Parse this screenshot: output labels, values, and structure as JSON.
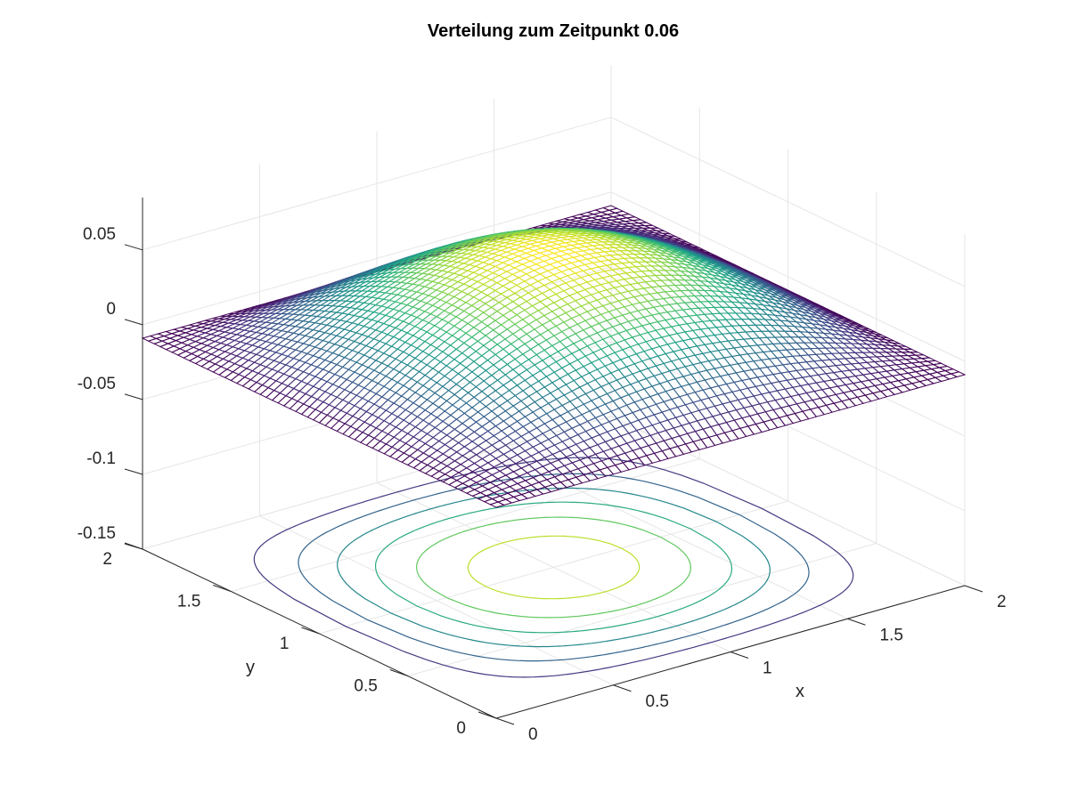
{
  "chart_data": {
    "type": "mesh",
    "title": "Verteilung zum Zeitpunkt 0.06",
    "xlabel": "x",
    "ylabel": "y",
    "zlabel": "",
    "xlim": [
      0,
      2
    ],
    "ylim": [
      0,
      2
    ],
    "zlim": [
      -0.15,
      0.085
    ],
    "x_ticks": [
      {
        "value": 0,
        "label": "0"
      },
      {
        "value": 0.5,
        "label": "0.5"
      },
      {
        "value": 1,
        "label": "1"
      },
      {
        "value": 1.5,
        "label": "1.5"
      },
      {
        "value": 2,
        "label": "2"
      }
    ],
    "y_ticks": [
      {
        "value": 0,
        "label": "0"
      },
      {
        "value": 0.5,
        "label": "0.5"
      },
      {
        "value": 1,
        "label": "1"
      },
      {
        "value": 1.5,
        "label": "1.5"
      },
      {
        "value": 2,
        "label": "2"
      }
    ],
    "z_ticks": [
      {
        "value": -0.15,
        "label": "-0.15"
      },
      {
        "value": -0.1,
        "label": "-0.1"
      },
      {
        "value": -0.05,
        "label": "-0.05"
      },
      {
        "value": 0,
        "label": "0"
      },
      {
        "value": 0.05,
        "label": "0.05"
      }
    ],
    "surface": {
      "function": "z = 0.069 * sin(pi*x/2) * sin(pi*y/2) - 0.009",
      "peak": {
        "x": 1,
        "y": 1,
        "z": 0.06
      },
      "corner_value": -0.009,
      "grid_points_per_axis": 61,
      "colormap": "viridis"
    },
    "contours": {
      "plane_z": -0.15,
      "levels": [
        0.003,
        0.013,
        0.023,
        0.033,
        0.043,
        0.053
      ]
    },
    "grid": true,
    "colors": {
      "colormap_low": "#440154",
      "colormap_mid": "#21918c",
      "colormap_high": "#fde725",
      "grid": "#e6e6e6",
      "axis": "#262626"
    }
  }
}
